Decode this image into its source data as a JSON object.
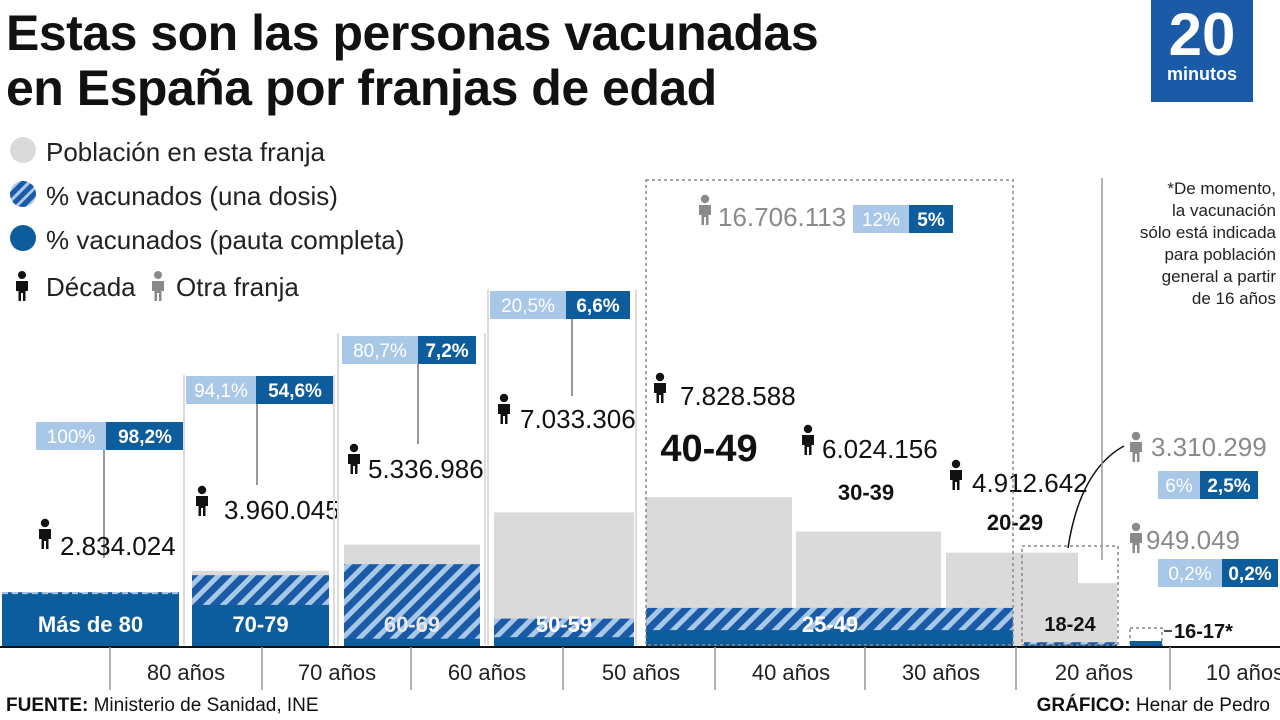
{
  "header": {
    "title_line1": "Estas son las personas vacunadas",
    "title_line2": "en España por franjas de edad",
    "logo_number": "20",
    "logo_word": "minutos"
  },
  "legend": {
    "population": "Población en esta franja",
    "one_dose": "% vacunados (una dosis)",
    "full": "% vacunados (pauta completa)",
    "decade": "Década",
    "other": "Otra franja"
  },
  "note": [
    "*De momento,",
    "la vacunación",
    "sólo está indicada",
    "para población",
    "general a partir",
    "de 16 años"
  ],
  "footer": {
    "source_label": "FUENTE:",
    "source_text": " Ministerio de Sanidad, INE",
    "credit_label": "GRÁFICO:",
    "credit_text": " Henar de Pedro"
  },
  "colors": {
    "population": "#dadada",
    "one_dose": "#1a5aa6",
    "full": "#0d5c9c",
    "pct_one_badge": "#a9c7e6",
    "pct_full_badge": "#0d5c9c",
    "decade_icon": "#111111",
    "other_icon": "#8a8a8a"
  },
  "chart_data": {
    "type": "bar",
    "title": "Estas son las personas vacunadas en España por franjas de edad",
    "xlabel": "",
    "ylabel": "",
    "x_ticks": [
      "80 años",
      "70 años",
      "60 años",
      "50 años",
      "40 años",
      "30 años",
      "20 años",
      "10 años"
    ],
    "series_names": [
      "Población en esta franja",
      "% vacunados (una dosis)",
      "% vacunados (pauta completa)"
    ],
    "groups": [
      {
        "label": "Más de 80",
        "population": 2834024,
        "population_label": "2.834.024",
        "one_dose_pct": 100,
        "one_dose_label": "100%",
        "full_pct": 98.2,
        "full_label": "98,2%",
        "icon": "decade"
      },
      {
        "label": "70-79",
        "population": 3960045,
        "population_label": "3.960.045",
        "one_dose_pct": 94.1,
        "one_dose_label": "94,1%",
        "full_pct": 54.6,
        "full_label": "54,6%",
        "icon": "decade"
      },
      {
        "label": "60-69",
        "population": 5336986,
        "population_label": "5.336.986",
        "one_dose_pct": 80.7,
        "one_dose_label": "80,7%",
        "full_pct": 7.2,
        "full_label": "7,2%",
        "icon": "decade"
      },
      {
        "label": "50-59",
        "population": 7033306,
        "population_label": "7.033.306",
        "one_dose_pct": 20.5,
        "one_dose_label": "20,5%",
        "full_pct": 6.6,
        "full_label": "6,6%",
        "icon": "decade"
      },
      {
        "label": "40-49",
        "population": 7828588,
        "population_label": "7.828.588",
        "icon": "decade"
      },
      {
        "label": "30-39",
        "population": 6024156,
        "population_label": "6.024.156",
        "icon": "decade"
      },
      {
        "label": "20-29",
        "population": 4912642,
        "population_label": "4.912.642",
        "icon": "decade"
      },
      {
        "label": "18-24",
        "population": 3310299,
        "population_label": "3.310.299",
        "one_dose_pct": 6,
        "one_dose_label": "6%",
        "full_pct": 2.5,
        "full_label": "2,5%",
        "icon": "other"
      },
      {
        "label": "16-17*",
        "population": 949049,
        "population_label": "949.049",
        "one_dose_pct": 0.2,
        "one_dose_label": "0,2%",
        "full_pct": 0.2,
        "full_label": "0,2%",
        "icon": "other"
      }
    ],
    "combined_group": {
      "label": "25-49",
      "population": 16706113,
      "population_label": "16.706.113",
      "one_dose_pct": 12,
      "one_dose_label": "12%",
      "full_pct": 5,
      "full_label": "5%",
      "icon": "other"
    }
  }
}
